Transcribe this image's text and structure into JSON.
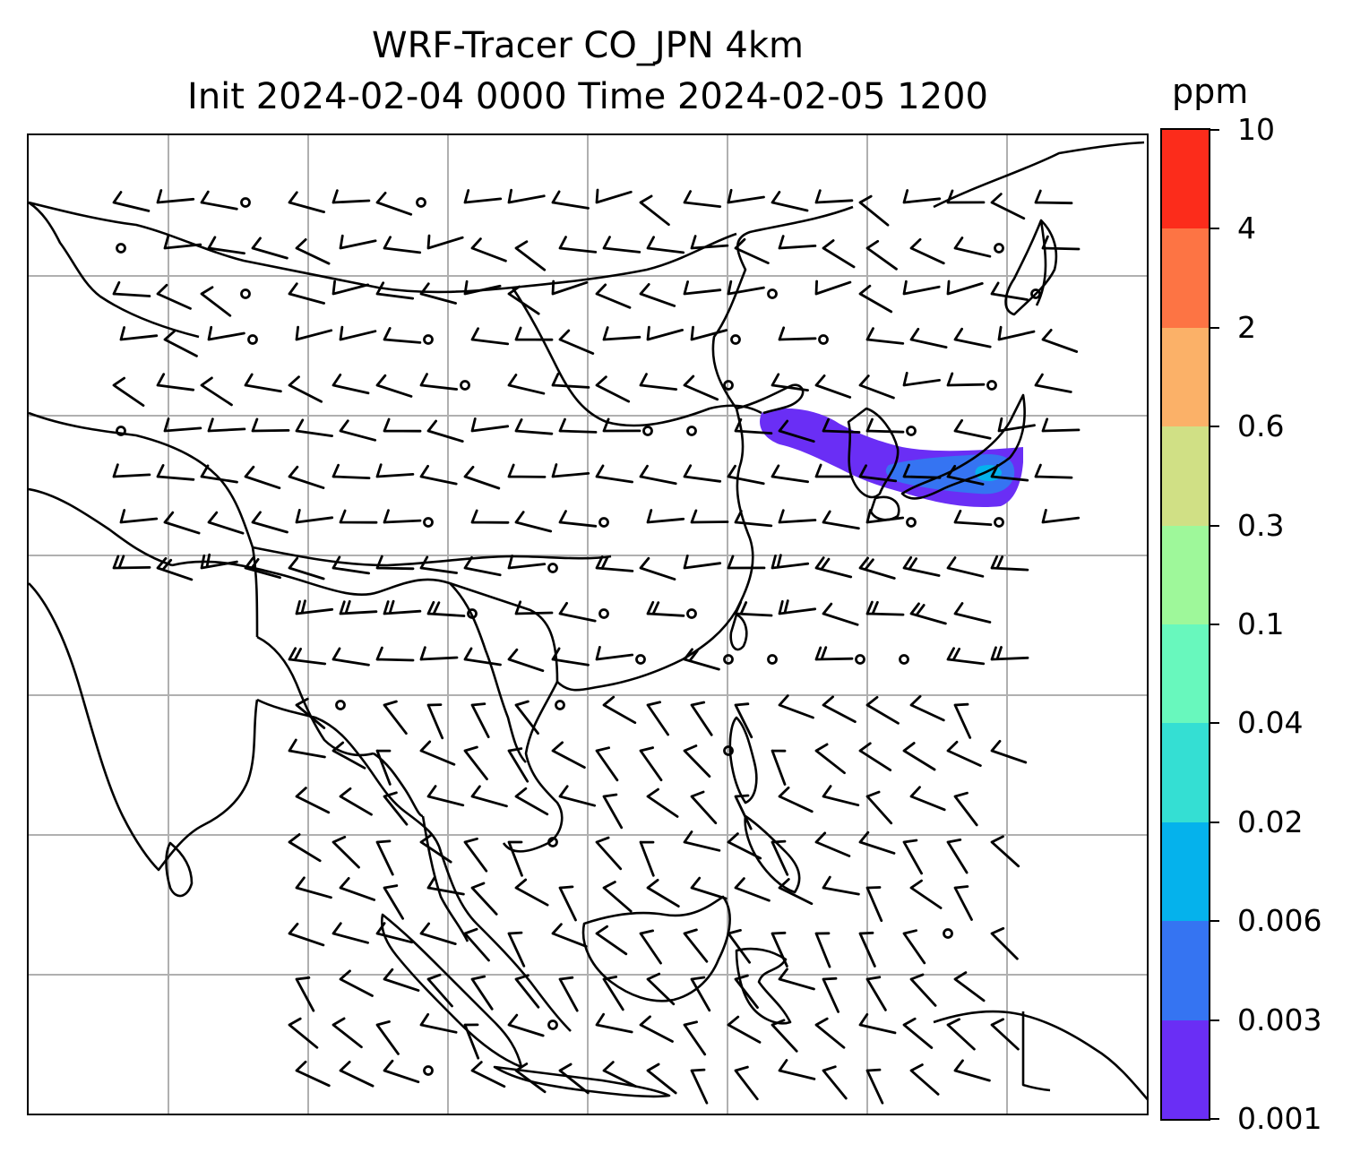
{
  "title": {
    "line1": "WRF-Tracer CO_JPN 4km",
    "line2": "Init 2024-02-04 0000 Time 2024-02-05 1200"
  },
  "colorbar": {
    "unit": "ppm",
    "ticks": [
      "0.001",
      "0.003",
      "0.006",
      "0.02",
      "0.04",
      "0.1",
      "0.3",
      "0.6",
      "2",
      "4",
      "10"
    ],
    "colors": [
      "#6a2ef5",
      "#3574f2",
      "#05b2ec",
      "#34dfd3",
      "#68f8bd",
      "#9ef89a",
      "#d0e085",
      "#fbb168",
      "#fd7444",
      "#fc2c1b"
    ]
  },
  "map": {
    "gridlines": true,
    "coastline_color": "#000000",
    "gridline_color": "#b0b0b0",
    "plume": {
      "description_colors": [
        "#6a2ef5",
        "#3574f2",
        "#05b2ec"
      ]
    }
  }
}
